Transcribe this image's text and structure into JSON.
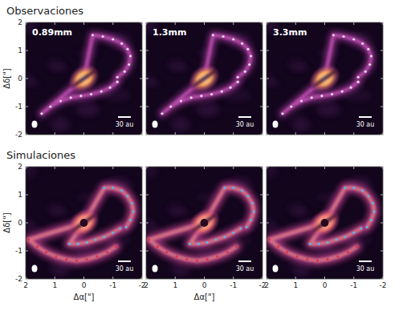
{
  "headings": [
    "Observaciones",
    "Simulaciones"
  ],
  "chart_data": [
    {
      "type": "image",
      "title": "0.89mm",
      "ylabel": "Δδ[\"]",
      "annotation": "30 au",
      "xlim": [
        2,
        -2
      ],
      "ylim": [
        -2,
        2
      ],
      "xticks": [
        2,
        1,
        0,
        -1,
        -2
      ],
      "yticks": [
        2,
        1,
        0,
        -1,
        -2
      ],
      "tick_labels": "y",
      "series": [
        {
          "type": "scatter",
          "marker": "dot",
          "color": "#f4d8f0",
          "x": [
            -0.3,
            -0.65,
            -1.0,
            -1.3,
            -1.5,
            -1.6,
            -1.55,
            -1.4,
            -1.15
          ],
          "values": [
            1.55,
            1.5,
            1.4,
            1.25,
            1.05,
            0.8,
            0.5,
            0.25,
            0.05
          ]
        },
        {
          "type": "scatter",
          "marker": "dot",
          "color": "#f4d8f0",
          "x": [
            1.45,
            1.15,
            0.8,
            0.45,
            0.1,
            -0.25,
            -0.6,
            -0.9,
            -1.15
          ],
          "values": [
            -1.25,
            -1.0,
            -0.8,
            -0.68,
            -0.62,
            -0.56,
            -0.46,
            -0.32,
            -0.12
          ]
        }
      ]
    },
    {
      "type": "image",
      "title": "1.3mm",
      "annotation": "30 au",
      "xlim": [
        2,
        -2
      ],
      "ylim": [
        -2,
        2
      ],
      "xticks": [
        2,
        1,
        0,
        -1,
        -2
      ],
      "yticks": [
        2,
        1,
        0,
        -1,
        -2
      ],
      "tick_labels": false,
      "series": [
        {
          "type": "scatter",
          "marker": "dot",
          "color": "#f4d8f0",
          "x": [
            -0.3,
            -0.65,
            -1.0,
            -1.3,
            -1.5,
            -1.6,
            -1.55,
            -1.4,
            -1.15
          ],
          "values": [
            1.55,
            1.5,
            1.4,
            1.25,
            1.05,
            0.8,
            0.5,
            0.25,
            0.05
          ]
        },
        {
          "type": "scatter",
          "marker": "dot",
          "color": "#f4d8f0",
          "x": [
            1.45,
            1.15,
            0.8,
            0.45,
            0.1,
            -0.25,
            -0.6,
            -0.9,
            -1.15
          ],
          "values": [
            -1.25,
            -1.0,
            -0.8,
            -0.68,
            -0.62,
            -0.56,
            -0.46,
            -0.32,
            -0.12
          ]
        }
      ]
    },
    {
      "type": "image",
      "title": "3.3mm",
      "annotation": "30 au",
      "xlim": [
        2,
        -2
      ],
      "ylim": [
        -2,
        2
      ],
      "xticks": [
        2,
        1,
        0,
        -1,
        -2
      ],
      "yticks": [
        2,
        1,
        0,
        -1,
        -2
      ],
      "tick_labels": false,
      "series": [
        {
          "type": "scatter",
          "marker": "dot",
          "color": "#f4d8f0",
          "x": [
            -0.3,
            -0.65,
            -1.0,
            -1.3,
            -1.5,
            -1.6,
            -1.55,
            -1.4,
            -1.15
          ],
          "values": [
            1.55,
            1.5,
            1.4,
            1.25,
            1.05,
            0.8,
            0.5,
            0.25,
            0.05
          ]
        },
        {
          "type": "scatter",
          "marker": "dot",
          "color": "#f4d8f0",
          "x": [
            1.45,
            1.15,
            0.8,
            0.45,
            0.1,
            -0.25,
            -0.6,
            -0.9,
            -1.15
          ],
          "values": [
            -1.25,
            -1.0,
            -0.8,
            -0.68,
            -0.62,
            -0.56,
            -0.46,
            -0.32,
            -0.12
          ]
        }
      ]
    },
    {
      "type": "image",
      "ylabel": "Δδ[\"]",
      "xlabel": "Δα[\"]",
      "annotation": "30 au",
      "xlim": [
        2,
        -2
      ],
      "ylim": [
        -2,
        2
      ],
      "xticks": [
        2,
        1,
        0,
        -1,
        -2
      ],
      "yticks": [
        2,
        1,
        0,
        -1,
        -2
      ],
      "tick_labels": true,
      "series": [
        {
          "type": "scatter",
          "marker": "dot",
          "color": "#5ab4f0",
          "x": [
            -0.7,
            -1.0,
            -1.3,
            -1.5,
            -1.65,
            -1.7,
            -1.6,
            -1.45
          ],
          "values": [
            1.25,
            1.25,
            1.15,
            0.95,
            0.7,
            0.4,
            0.1,
            -0.15
          ]
        },
        {
          "type": "scatter",
          "marker": "dot",
          "color": "#5ab4f0",
          "x": [
            0.5,
            0.2,
            -0.1,
            -0.4,
            -0.7,
            -1.0,
            -1.25
          ],
          "values": [
            -0.75,
            -0.75,
            -0.7,
            -0.6,
            -0.5,
            -0.35,
            -0.2
          ]
        },
        {
          "type": "scatter",
          "marker": "dot",
          "color": "#e0304a",
          "x": [
            1.9,
            1.6,
            1.3,
            0.95,
            0.6,
            0.25,
            -0.1,
            -0.45,
            -0.8,
            -1.1
          ],
          "values": [
            -0.6,
            -0.85,
            -1.05,
            -1.2,
            -1.3,
            -1.35,
            -1.3,
            -1.2,
            -1.05,
            -0.85
          ]
        }
      ]
    },
    {
      "type": "image",
      "xlabel": "Δα[\"]",
      "annotation": "30 au",
      "xlim": [
        2,
        -2
      ],
      "ylim": [
        -2,
        2
      ],
      "xticks": [
        2,
        1,
        0,
        -1,
        -2
      ],
      "yticks": [
        2,
        1,
        0,
        -1,
        -2
      ],
      "tick_labels": "x",
      "series": [
        {
          "type": "scatter",
          "marker": "dot",
          "color": "#5ab4f0",
          "x": [
            -0.7,
            -1.0,
            -1.3,
            -1.5,
            -1.65,
            -1.7,
            -1.6,
            -1.45
          ],
          "values": [
            1.25,
            1.25,
            1.15,
            0.95,
            0.7,
            0.4,
            0.1,
            -0.15
          ]
        },
        {
          "type": "scatter",
          "marker": "dot",
          "color": "#5ab4f0",
          "x": [
            0.5,
            0.2,
            -0.1,
            -0.4,
            -0.7,
            -1.0,
            -1.25
          ],
          "values": [
            -0.75,
            -0.75,
            -0.7,
            -0.6,
            -0.5,
            -0.35,
            -0.2
          ]
        },
        {
          "type": "scatter",
          "marker": "dot",
          "color": "#e0304a",
          "x": [
            1.9,
            1.6,
            1.3,
            0.95,
            0.6,
            0.25,
            -0.1,
            -0.45,
            -0.8,
            -1.1
          ],
          "values": [
            -0.6,
            -0.85,
            -1.05,
            -1.2,
            -1.3,
            -1.35,
            -1.3,
            -1.2,
            -1.05,
            -0.85
          ]
        }
      ]
    },
    {
      "type": "image",
      "annotation": "30 au",
      "xlim": [
        2,
        -2
      ],
      "ylim": [
        -2,
        2
      ],
      "xticks": [
        2,
        1,
        0,
        -1,
        -2
      ],
      "yticks": [
        2,
        1,
        0,
        -1,
        -2
      ],
      "tick_labels": "x",
      "series": [
        {
          "type": "scatter",
          "marker": "dot",
          "color": "#5ab4f0",
          "x": [
            -0.7,
            -1.0,
            -1.3,
            -1.5,
            -1.65,
            -1.7,
            -1.6,
            -1.45
          ],
          "values": [
            1.25,
            1.25,
            1.15,
            0.95,
            0.7,
            0.4,
            0.1,
            -0.15
          ]
        },
        {
          "type": "scatter",
          "marker": "dot",
          "color": "#5ab4f0",
          "x": [
            0.5,
            0.2,
            -0.1,
            -0.4,
            -0.7,
            -1.0,
            -1.25
          ],
          "values": [
            -0.75,
            -0.75,
            -0.7,
            -0.6,
            -0.5,
            -0.35,
            -0.2
          ]
        },
        {
          "type": "scatter",
          "marker": "dot",
          "color": "#e0304a",
          "x": [
            1.9,
            1.6,
            1.3,
            0.95,
            0.6,
            0.25,
            -0.1,
            -0.45,
            -0.8,
            -1.1
          ],
          "values": [
            -0.6,
            -0.85,
            -1.05,
            -1.2,
            -1.3,
            -1.35,
            -1.3,
            -1.2,
            -1.05,
            -0.85
          ]
        }
      ]
    }
  ]
}
